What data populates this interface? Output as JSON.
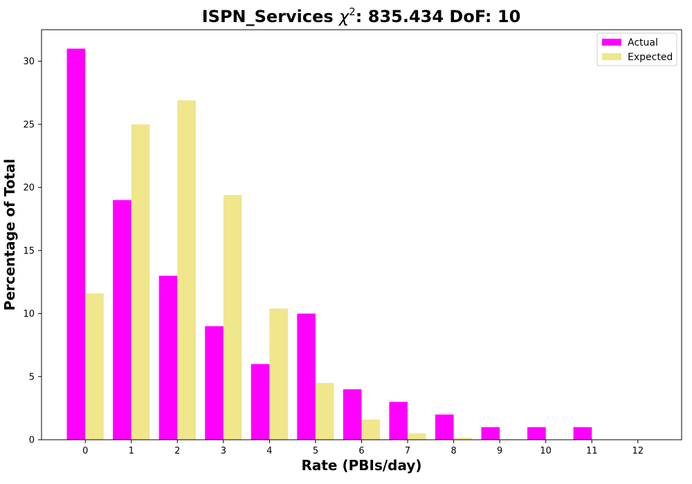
{
  "chart_data": {
    "type": "bar",
    "title": {
      "prefix": "ISPN_Services ",
      "symbol": "χ",
      "superscript": "2",
      "suffix": ": 835.434 DoF: 10"
    },
    "xlabel": "Rate (PBIs/day)",
    "ylabel": "Percentage of Total",
    "categories": [
      "0",
      "1",
      "2",
      "3",
      "4",
      "5",
      "6",
      "7",
      "8",
      "9",
      "10",
      "11",
      "12"
    ],
    "series": [
      {
        "name": "Actual",
        "color": "#ff00ff",
        "values": [
          31,
          19,
          13,
          9,
          6,
          10,
          4,
          3,
          2,
          1,
          1,
          1,
          0
        ]
      },
      {
        "name": "Expected",
        "color": "#f0e68c",
        "values": [
          11.6,
          25.0,
          26.9,
          19.4,
          10.4,
          4.5,
          1.6,
          0.5,
          0.15,
          0.04,
          0.01,
          0,
          0
        ]
      }
    ],
    "ylim": [
      0,
      32.5
    ],
    "yticks": [
      0,
      5,
      10,
      15,
      20,
      25,
      30
    ],
    "legend": "top-right",
    "grid": false
  }
}
